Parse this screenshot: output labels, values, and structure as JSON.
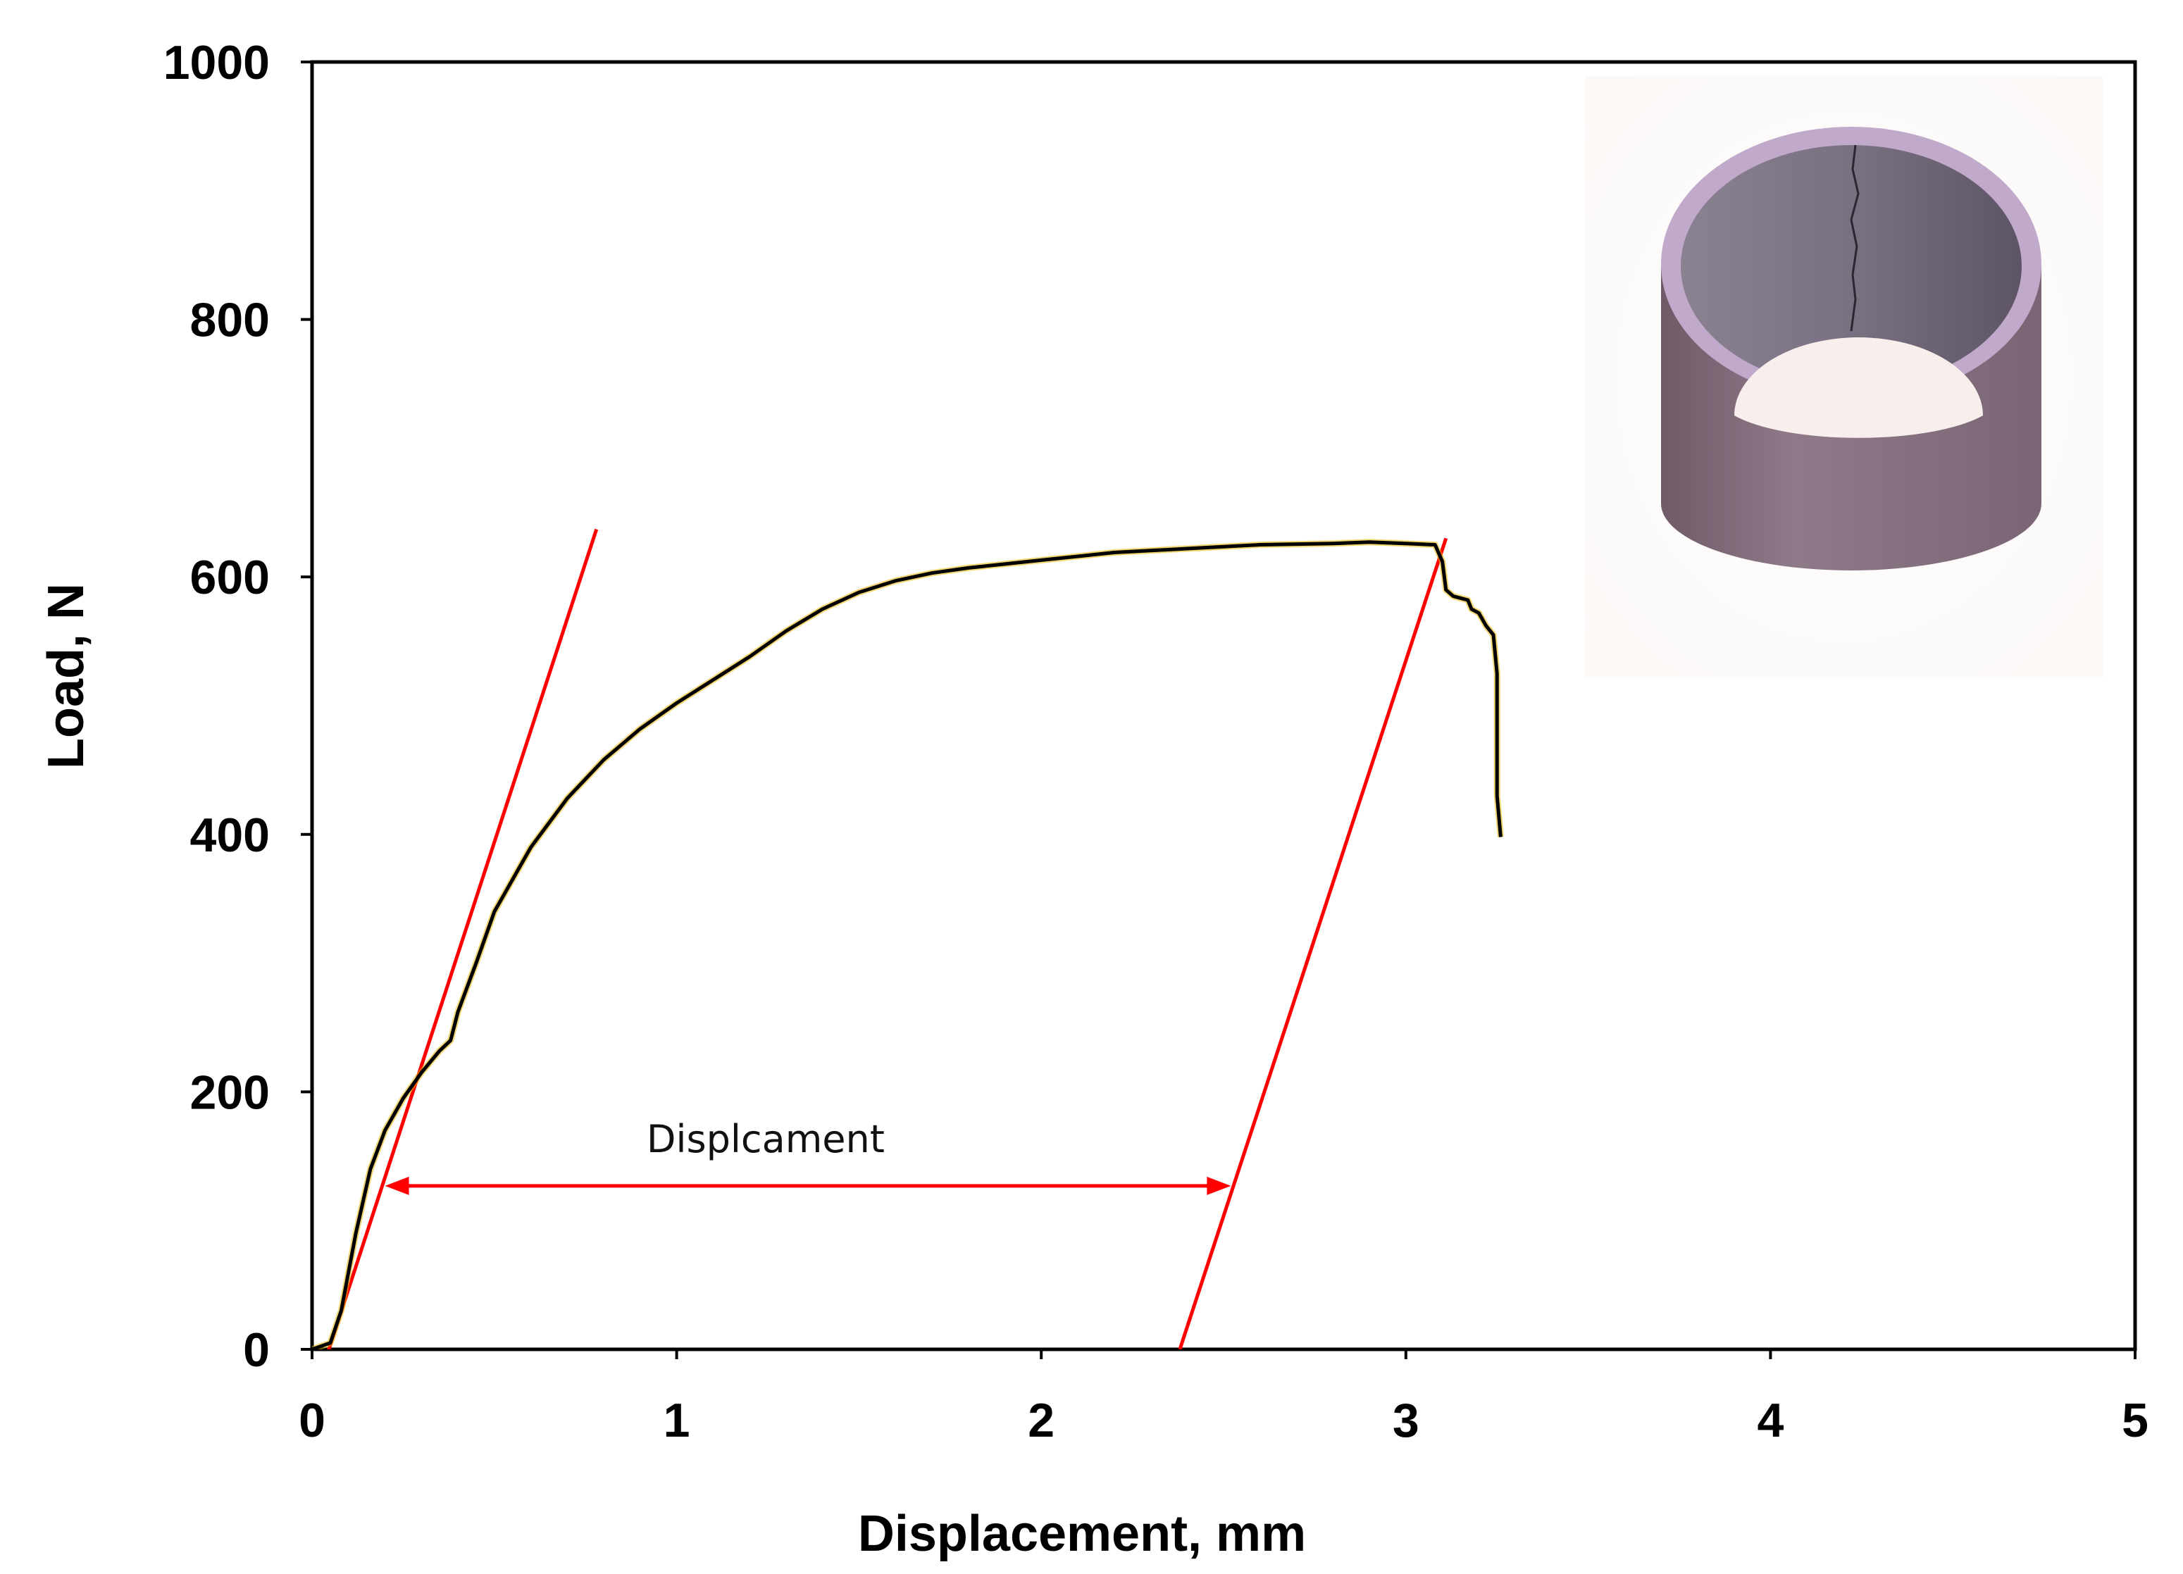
{
  "chart_data": {
    "type": "line",
    "title": "",
    "xlabel": "Displacement, mm",
    "ylabel": "Load, N",
    "xlim": [
      0,
      5
    ],
    "ylim": [
      0,
      1000
    ],
    "x_ticks": [
      "0",
      "1",
      "2",
      "3",
      "4",
      "5"
    ],
    "y_ticks": [
      "0",
      "200",
      "400",
      "600",
      "800",
      "1000"
    ],
    "grid": false,
    "legend": "none",
    "series": [
      {
        "color": "#000000",
        "accent_color": "#e8b400",
        "x": [
          0.0,
          0.05,
          0.08,
          0.12,
          0.16,
          0.2,
          0.25,
          0.3,
          0.35,
          0.38,
          0.4,
          0.45,
          0.5,
          0.6,
          0.7,
          0.8,
          0.9,
          1.0,
          1.1,
          1.2,
          1.3,
          1.4,
          1.5,
          1.6,
          1.7,
          1.8,
          2.0,
          2.2,
          2.4,
          2.6,
          2.8,
          2.9,
          3.0,
          3.08,
          3.1,
          3.11,
          3.13,
          3.17,
          3.18,
          3.2,
          3.22,
          3.24,
          3.25,
          3.25,
          3.26
        ],
        "y": [
          0,
          5,
          30,
          90,
          140,
          170,
          195,
          215,
          232,
          240,
          262,
          300,
          340,
          390,
          428,
          458,
          482,
          502,
          520,
          538,
          558,
          575,
          588,
          597,
          603,
          607,
          613,
          619,
          622,
          625,
          626,
          627,
          626,
          625,
          612,
          590,
          585,
          582,
          575,
          572,
          562,
          555,
          525,
          430,
          398
        ]
      }
    ],
    "reference_lines": [
      {
        "color": "#ff0000",
        "x": [
          0.0,
          0.78
        ],
        "y": [
          -40,
          637
        ]
      },
      {
        "color": "#ff0000",
        "x": [
          2.38,
          3.11
        ],
        "y": [
          0,
          630
        ]
      }
    ],
    "annotations": [
      {
        "text": "Displcament",
        "color": "#ff0000",
        "arrow_x": [
          0.2,
          2.52
        ],
        "arrow_y": 127
      }
    ]
  },
  "inset": {
    "icon": "cracked-cylindrical-tube-photo",
    "background": "#fbf8f6",
    "tube_color": "#8f7a89",
    "rim_color": "#c0a9cb"
  }
}
